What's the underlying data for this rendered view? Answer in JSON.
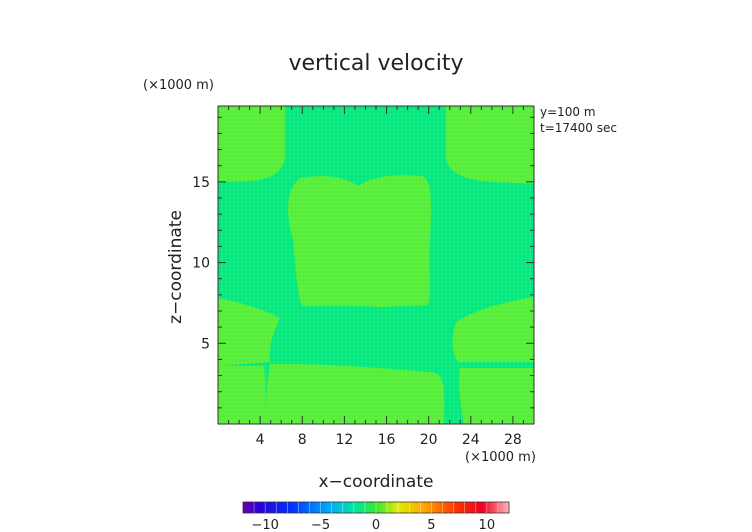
{
  "chart_data": {
    "type": "heatmap",
    "title": "vertical velocity",
    "xlabel": "x−coordinate",
    "ylabel": "z−coordinate",
    "x_unit": "(×1000 m)",
    "y_unit": "(×1000 m)",
    "annotations": [
      "y=100 m",
      "t=17400 sec"
    ],
    "xlim": [
      0,
      30
    ],
    "ylim": [
      0,
      19.7
    ],
    "x_ticks": [
      4,
      8,
      12,
      16,
      20,
      24,
      28
    ],
    "y_ticks": [
      5,
      10,
      15
    ],
    "background_level": 0,
    "regions": [
      {
        "label": "top-left",
        "value": 1.0
      },
      {
        "label": "top-right",
        "value": 1.0
      },
      {
        "label": "center",
        "value": 1.0
      },
      {
        "label": "middle-left",
        "value": 1.0
      },
      {
        "label": "middle-right",
        "value": 1.0
      },
      {
        "label": "bottom-left",
        "value": 1.0
      },
      {
        "label": "bottom-center",
        "value": 1.0
      },
      {
        "label": "bottom-right",
        "value": 1.0
      }
    ],
    "colorbar": {
      "min": -12,
      "max": 12,
      "tick_labels": [
        "−10",
        "−5",
        "0",
        "5",
        "10"
      ],
      "tick_values": [
        -10,
        -5,
        0,
        5,
        10
      ]
    },
    "colors": {
      "background": "#00e87c",
      "positive": "#55ee33",
      "grid": "#8cf0b8"
    },
    "grid": true
  }
}
